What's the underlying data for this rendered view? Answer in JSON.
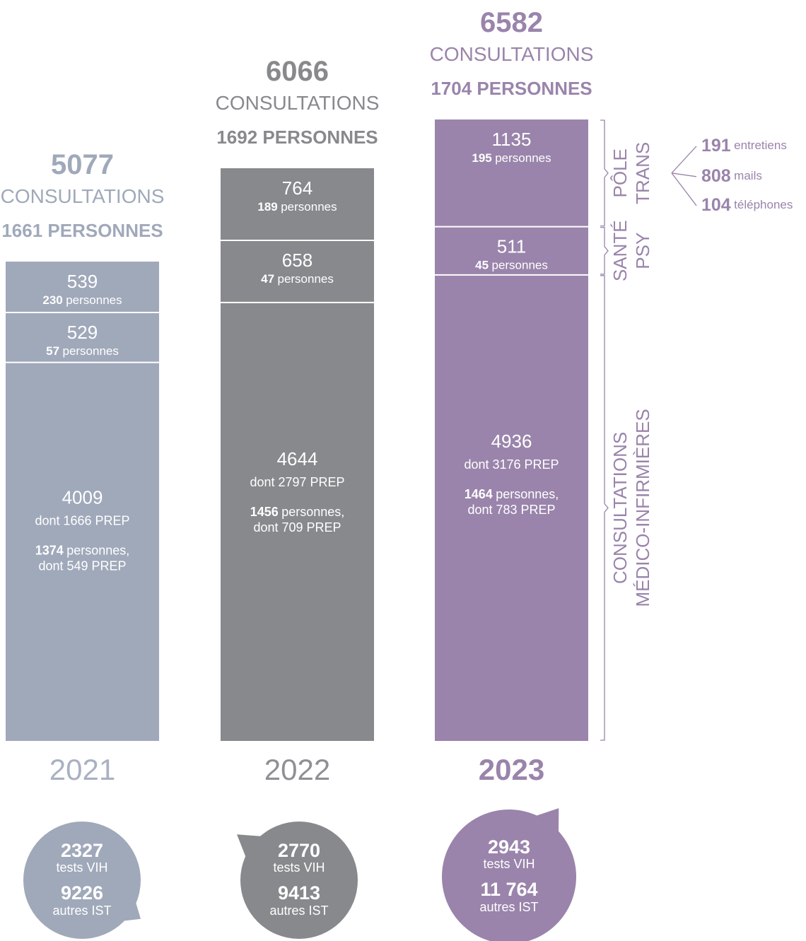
{
  "columns": [
    {
      "year": "2021",
      "emphasis": false,
      "color": "#a0a9ba",
      "year_color": "#a9b1c2",
      "total": 5077,
      "total_label": "CONSULTATIONS",
      "persons": "1661 PERSONNES",
      "segments": [
        {
          "value": 539,
          "persons": 230,
          "persons_label": "personnes"
        },
        {
          "value": 529,
          "persons": 57,
          "persons_label": "personnes"
        },
        {
          "value": 4009,
          "note": "dont 1666 PREP",
          "persons": 1374,
          "persons_label": "personnes,",
          "persons_note": "dont 549 PREP"
        }
      ],
      "bubble": {
        "tests": 2327,
        "tests_label": "tests VIH",
        "ist": "9226",
        "ist_label": "autres IST",
        "tail": "bottom-right"
      }
    },
    {
      "year": "2022",
      "emphasis": false,
      "color": "#87898c",
      "year_color": "#8e9094",
      "total": 6066,
      "total_label": "CONSULTATIONS",
      "persons": "1692 PERSONNES",
      "segments": [
        {
          "value": 764,
          "persons": 189,
          "persons_label": "personnes"
        },
        {
          "value": 658,
          "persons": 47,
          "persons_label": "personnes"
        },
        {
          "value": 4644,
          "note": "dont 2797 PREP",
          "persons": 1456,
          "persons_label": "personnes,",
          "persons_note": "dont 709 PREP"
        }
      ],
      "bubble": {
        "tests": 2770,
        "tests_label": "tests VIH",
        "ist": "9413",
        "ist_label": "autres IST",
        "tail": "top-left"
      }
    },
    {
      "year": "2023",
      "emphasis": true,
      "color": "#9a84ab",
      "year_color": "#9a84ab",
      "total": 6582,
      "total_label": "CONSULTATIONS",
      "persons": "1704 PERSONNES",
      "segments": [
        {
          "value": 1135,
          "persons": 195,
          "persons_label": "personnes"
        },
        {
          "value": 511,
          "persons": 45,
          "persons_label": "personnes"
        },
        {
          "value": 4936,
          "note": "dont 3176 PREP",
          "persons": 1464,
          "persons_label": "personnes,",
          "persons_note": "dont 783 PREP"
        }
      ],
      "bubble": {
        "tests": 2943,
        "tests_label": "tests VIH",
        "ist": "11 764",
        "ist_label": "autres IST",
        "tail": "top-right"
      }
    }
  ],
  "sections": [
    {
      "lines": [
        "PÔLE",
        "TRANS"
      ]
    },
    {
      "lines": [
        "SANTÉ",
        "PSY"
      ]
    },
    {
      "lines": [
        "CONSULTATIONS",
        "MÉDICO-INFIRMIÈRES"
      ]
    }
  ],
  "trans_breakdown": [
    {
      "value": 191,
      "label": "entretiens"
    },
    {
      "value": 808,
      "label": "mails"
    },
    {
      "value": 104,
      "label": "téléphones"
    }
  ]
}
